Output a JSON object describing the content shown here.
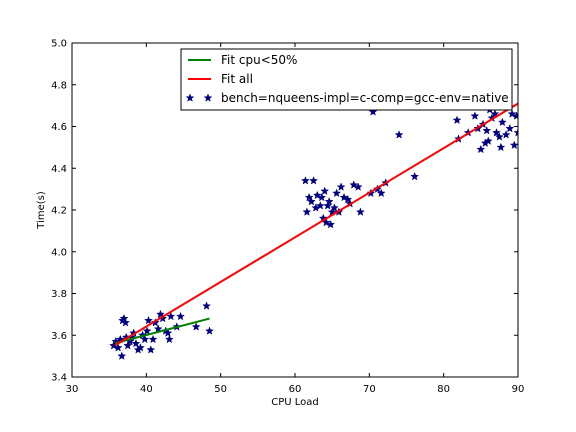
{
  "chart_data": {
    "type": "scatter",
    "title": "",
    "xlabel": "CPU Load",
    "ylabel": "Time(s)",
    "xlim": [
      30,
      90
    ],
    "ylim": [
      3.4,
      5.0
    ],
    "xticks": [
      30,
      40,
      50,
      60,
      70,
      80,
      90
    ],
    "yticks": [
      3.4,
      3.6,
      3.8,
      4.0,
      4.2,
      4.4,
      4.6,
      4.8,
      5.0
    ],
    "xtick_labels": [
      "30",
      "40",
      "50",
      "60",
      "70",
      "80",
      "90"
    ],
    "ytick_labels": [
      "3.4",
      "3.6",
      "3.8",
      "4.0",
      "4.2",
      "4.4",
      "4.6",
      "4.8",
      "5.0"
    ],
    "grid": false,
    "legend_position": "top-right",
    "lines": [
      {
        "name": "Fit cpu<50%",
        "color": "#008000",
        "x": [
          35.8,
          48.5
        ],
        "y": [
          3.562,
          3.68
        ]
      },
      {
        "name": "Fit all",
        "color": "#ff0000",
        "x": [
          35.8,
          90.0
        ],
        "y": [
          3.552,
          4.71
        ]
      }
    ],
    "series": [
      {
        "name": "bench=nqueens-impl=c-comp=gcc-env=native",
        "color": "#000080",
        "marker": "star",
        "points": [
          [
            35.6,
            3.55
          ],
          [
            35.9,
            3.57
          ],
          [
            36.2,
            3.54
          ],
          [
            36.5,
            3.58
          ],
          [
            36.7,
            3.5
          ],
          [
            36.8,
            3.67
          ],
          [
            37.0,
            3.68
          ],
          [
            37.2,
            3.66
          ],
          [
            37.3,
            3.59
          ],
          [
            37.5,
            3.55
          ],
          [
            37.8,
            3.57
          ],
          [
            38.0,
            3.59
          ],
          [
            38.3,
            3.61
          ],
          [
            38.6,
            3.56
          ],
          [
            38.9,
            3.53
          ],
          [
            39.2,
            3.54
          ],
          [
            39.5,
            3.6
          ],
          [
            39.8,
            3.58
          ],
          [
            40.1,
            3.62
          ],
          [
            40.3,
            3.67
          ],
          [
            40.6,
            3.53
          ],
          [
            40.9,
            3.58
          ],
          [
            41.2,
            3.66
          ],
          [
            41.6,
            3.63
          ],
          [
            41.9,
            3.7
          ],
          [
            42.2,
            3.68
          ],
          [
            42.6,
            3.62
          ],
          [
            42.9,
            3.61
          ],
          [
            43.1,
            3.58
          ],
          [
            43.3,
            3.69
          ],
          [
            44.1,
            3.64
          ],
          [
            44.6,
            3.69
          ],
          [
            46.7,
            3.64
          ],
          [
            48.1,
            3.74
          ],
          [
            48.5,
            3.62
          ],
          [
            61.4,
            4.34
          ],
          [
            61.6,
            4.19
          ],
          [
            61.9,
            4.26
          ],
          [
            62.2,
            4.24
          ],
          [
            62.5,
            4.34
          ],
          [
            62.8,
            4.21
          ],
          [
            63.0,
            4.27
          ],
          [
            63.4,
            4.22
          ],
          [
            63.6,
            4.26
          ],
          [
            63.8,
            4.16
          ],
          [
            64.0,
            4.29
          ],
          [
            64.2,
            4.14
          ],
          [
            64.4,
            4.22
          ],
          [
            64.6,
            4.24
          ],
          [
            64.8,
            4.13
          ],
          [
            65.0,
            4.19
          ],
          [
            65.3,
            4.21
          ],
          [
            65.6,
            4.28
          ],
          [
            65.9,
            4.19
          ],
          [
            66.2,
            4.31
          ],
          [
            66.6,
            4.26
          ],
          [
            67.1,
            4.25
          ],
          [
            67.4,
            4.23
          ],
          [
            67.9,
            4.32
          ],
          [
            68.5,
            4.31
          ],
          [
            68.8,
            4.19
          ],
          [
            70.2,
            4.28
          ],
          [
            70.5,
            4.67
          ],
          [
            71.1,
            4.3
          ],
          [
            71.6,
            4.28
          ],
          [
            72.2,
            4.33
          ],
          [
            74.0,
            4.56
          ],
          [
            76.1,
            4.36
          ],
          [
            81.8,
            4.63
          ],
          [
            82.0,
            4.54
          ],
          [
            83.3,
            4.57
          ],
          [
            84.2,
            4.65
          ],
          [
            84.6,
            4.59
          ],
          [
            85.0,
            4.49
          ],
          [
            85.3,
            4.61
          ],
          [
            85.6,
            4.52
          ],
          [
            85.8,
            4.58
          ],
          [
            86.0,
            4.53
          ],
          [
            86.2,
            4.68
          ],
          [
            86.5,
            4.64
          ],
          [
            86.7,
            4.75
          ],
          [
            86.9,
            4.66
          ],
          [
            87.1,
            4.57
          ],
          [
            87.3,
            4.71
          ],
          [
            87.5,
            4.55
          ],
          [
            87.7,
            4.5
          ],
          [
            87.9,
            4.62
          ],
          [
            88.2,
            4.72
          ],
          [
            88.4,
            4.56
          ],
          [
            88.6,
            4.7
          ],
          [
            88.9,
            4.59
          ],
          [
            89.2,
            4.66
          ],
          [
            89.5,
            4.51
          ],
          [
            89.8,
            4.65
          ],
          [
            90.0,
            4.57
          ]
        ]
      }
    ]
  }
}
